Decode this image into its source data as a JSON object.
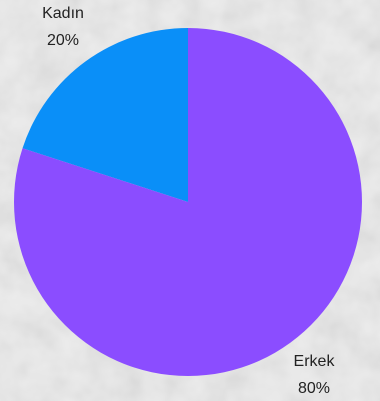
{
  "chart_data": {
    "type": "pie",
    "categories": [
      "Kadın",
      "Erkek"
    ],
    "values": [
      20,
      80
    ],
    "labels": [
      "20%",
      "80%"
    ],
    "colors": [
      "#0a8ff8",
      "#8b4dff"
    ],
    "title": "",
    "start_angle_deg": 0,
    "direction": "counterclockwise"
  },
  "colors": {
    "background": "#eeeeee"
  }
}
